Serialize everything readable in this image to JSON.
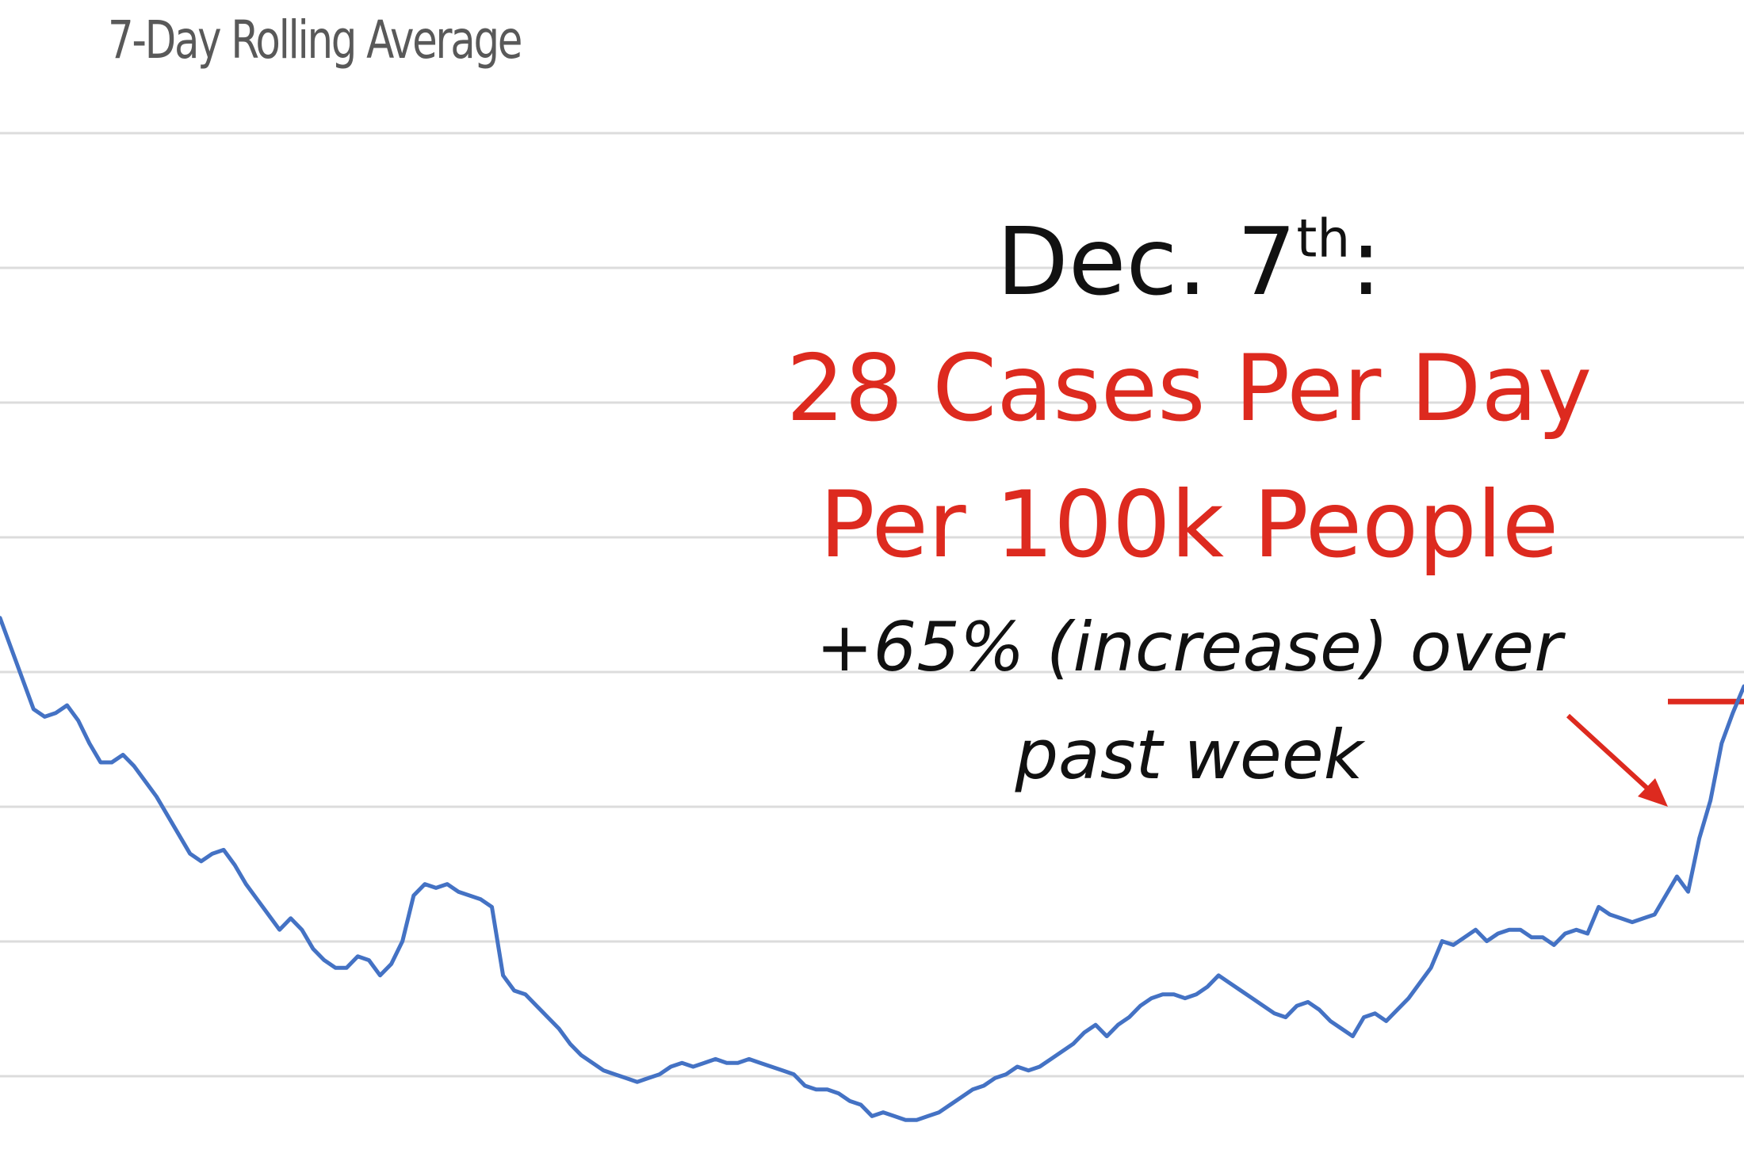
{
  "chart_data": {
    "type": "line",
    "subtitle": "7-Day Rolling Average",
    "title": "",
    "xlabel": "",
    "ylabel": "",
    "grid": true,
    "gridline_count": 8,
    "series": [
      {
        "color": "#4472c4",
        "values": [
          14.8,
          14.0,
          13.2,
          12.4,
          12.2,
          12.3,
          12.5,
          12.1,
          11.5,
          11.0,
          11.0,
          11.2,
          10.9,
          10.5,
          10.1,
          9.6,
          9.1,
          8.6,
          8.4,
          8.6,
          8.7,
          8.3,
          7.8,
          7.4,
          7.0,
          6.6,
          6.9,
          6.6,
          6.1,
          5.8,
          5.6,
          5.6,
          5.9,
          5.8,
          5.4,
          5.7,
          6.3,
          7.5,
          7.8,
          7.7,
          7.8,
          7.6,
          7.5,
          7.4,
          7.2,
          5.4,
          5.0,
          4.9,
          4.6,
          4.3,
          4.0,
          3.6,
          3.3,
          3.1,
          2.9,
          2.8,
          2.7,
          2.6,
          2.7,
          2.8,
          3.0,
          3.1,
          3.0,
          3.1,
          3.2,
          3.1,
          3.1,
          3.2,
          3.1,
          3.0,
          2.9,
          2.8,
          2.5,
          2.4,
          2.4,
          2.3,
          2.1,
          2.0,
          1.7,
          1.8,
          1.7,
          1.6,
          1.6,
          1.7,
          1.8,
          2.0,
          2.2,
          2.4,
          2.5,
          2.7,
          2.8,
          3.0,
          2.9,
          3.0,
          3.2,
          3.4,
          3.6,
          3.9,
          4.1,
          3.8,
          4.1,
          4.3,
          4.6,
          4.8,
          4.9,
          4.9,
          4.8,
          4.9,
          5.1,
          5.4,
          5.2,
          5.0,
          4.8,
          4.6,
          4.4,
          4.3,
          4.6,
          4.7,
          4.5,
          4.2,
          4.0,
          3.8,
          4.3,
          4.4,
          4.2,
          4.5,
          4.8,
          5.2,
          5.6,
          6.3,
          6.2,
          6.4,
          6.6,
          6.3,
          6.5,
          6.6,
          6.6,
          6.4,
          6.4,
          6.2,
          6.5,
          6.6,
          6.5,
          7.2,
          7.0,
          6.9,
          6.8,
          6.9,
          7.0,
          7.5,
          8.0,
          7.6,
          9.0,
          10.0,
          11.5,
          12.3,
          13.0
        ]
      }
    ],
    "reference_line": {
      "color": "#dd2a1f",
      "value": 12.6
    },
    "y_axis_hidden": true,
    "x_axis_hidden": true
  },
  "annotation": {
    "date_main": "Dec. 7",
    "date_sup": "th",
    "date_tail": ":",
    "headline_line1": "28 Cases Per Day",
    "headline_line2": "Per 100k People",
    "change_line1": "+65% (increase) over",
    "change_line2": "past week",
    "headline_color": "#dd2a1f"
  }
}
